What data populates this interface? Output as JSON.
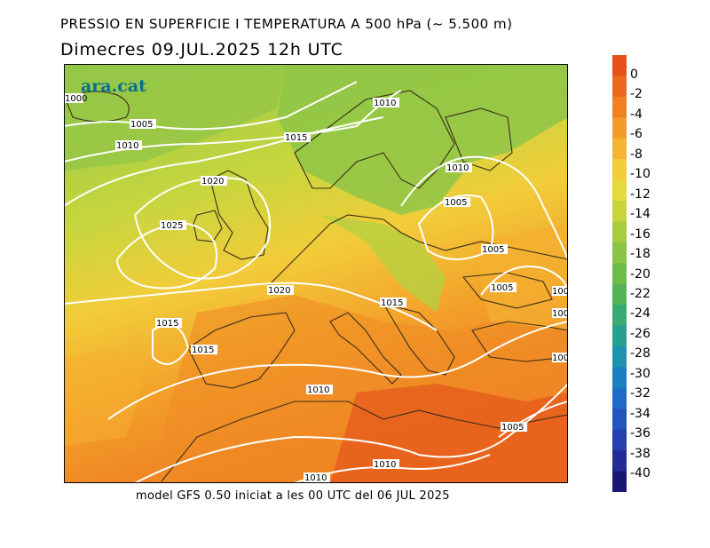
{
  "header": {
    "title": "PRESSIO EN SUPERFICIE I TEMPERATURA A 500 hPa (~ 5.500 m)",
    "subtitle": "Dimecres  09.JUL.2025 12h UTC"
  },
  "footer": {
    "text": "model GFS 0.50 iniciat a les 00 UTC del 06 JUL 2025"
  },
  "logo": {
    "text": "ara.cat",
    "color": "#0a6f8f"
  },
  "map": {
    "isobar_labels": [
      "1000",
      "1005",
      "1010",
      "1010",
      "1015",
      "1020",
      "1025",
      "1020",
      "1015",
      "1015",
      "1010",
      "1010",
      "1005",
      "1005",
      "1005",
      "1015",
      "1015",
      "1010",
      "1005",
      "1010",
      "1010",
      "1000",
      "1000",
      "100"
    ]
  },
  "colorbar": {
    "labels": [
      "0",
      "-2",
      "-4",
      "-6",
      "-8",
      "-10",
      "-12",
      "-14",
      "-16",
      "-18",
      "-20",
      "-22",
      "-24",
      "-26",
      "-28",
      "-30",
      "-32",
      "-34",
      "-36",
      "-38",
      "-40"
    ],
    "colors": [
      "#e8501a",
      "#ec6a1e",
      "#f08122",
      "#f39a28",
      "#f5b431",
      "#f3cd3a",
      "#e6d93c",
      "#c9d43c",
      "#a9cc3f",
      "#8ac445",
      "#6fbc4a",
      "#55b35a",
      "#3aaa74",
      "#26a190",
      "#1e93ad",
      "#1b80c2",
      "#1d6bc6",
      "#2355bd",
      "#263fae",
      "#242b97",
      "#1a1676"
    ]
  }
}
